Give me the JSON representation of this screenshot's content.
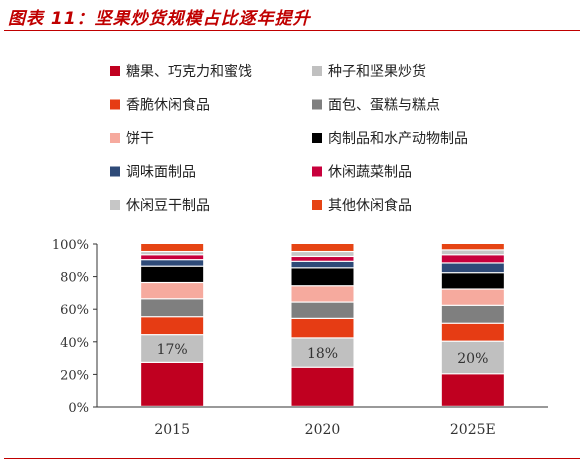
{
  "title": "图表 11：坚果炒货规模占比逐年提升",
  "chart_data": {
    "type": "bar",
    "stacked": true,
    "categories": [
      "2015",
      "2020",
      "2025E"
    ],
    "ylim": [
      0,
      100
    ],
    "yticks": [
      "0%",
      "20%",
      "40%",
      "60%",
      "80%",
      "100%"
    ],
    "legend_position": "top",
    "series": [
      {
        "name": "糖果、巧克力和蜜饯",
        "color": "#c00020",
        "values": [
          27,
          24,
          20
        ]
      },
      {
        "name": "种子和坚果炒货",
        "color": "#c0c0c0",
        "values": [
          17,
          18,
          20
        ],
        "labels": [
          "17%",
          "18%",
          "20%"
        ]
      },
      {
        "name": "香脆休闲食品",
        "color": "#e63c14",
        "values": [
          11,
          12,
          11
        ]
      },
      {
        "name": "面包、蛋糕与糕点",
        "color": "#7f7f7f",
        "values": [
          11,
          10,
          11
        ]
      },
      {
        "name": "饼干",
        "color": "#f6aa9e",
        "values": [
          10,
          10,
          10
        ]
      },
      {
        "name": "肉制品和水产动物制品",
        "color": "#000000",
        "values": [
          10,
          11,
          10
        ]
      },
      {
        "name": "调味面制品",
        "color": "#2e4a78",
        "values": [
          4,
          4,
          6
        ]
      },
      {
        "name": "休闲蔬菜制品",
        "color": "#c8003c",
        "values": [
          3,
          3,
          5
        ]
      },
      {
        "name": "休闲豆干制品",
        "color": "#c6c6c6",
        "values": [
          2,
          3,
          3
        ]
      },
      {
        "name": "其他休闲食品",
        "color": "#e64414",
        "values": [
          5,
          5,
          4
        ]
      }
    ]
  }
}
